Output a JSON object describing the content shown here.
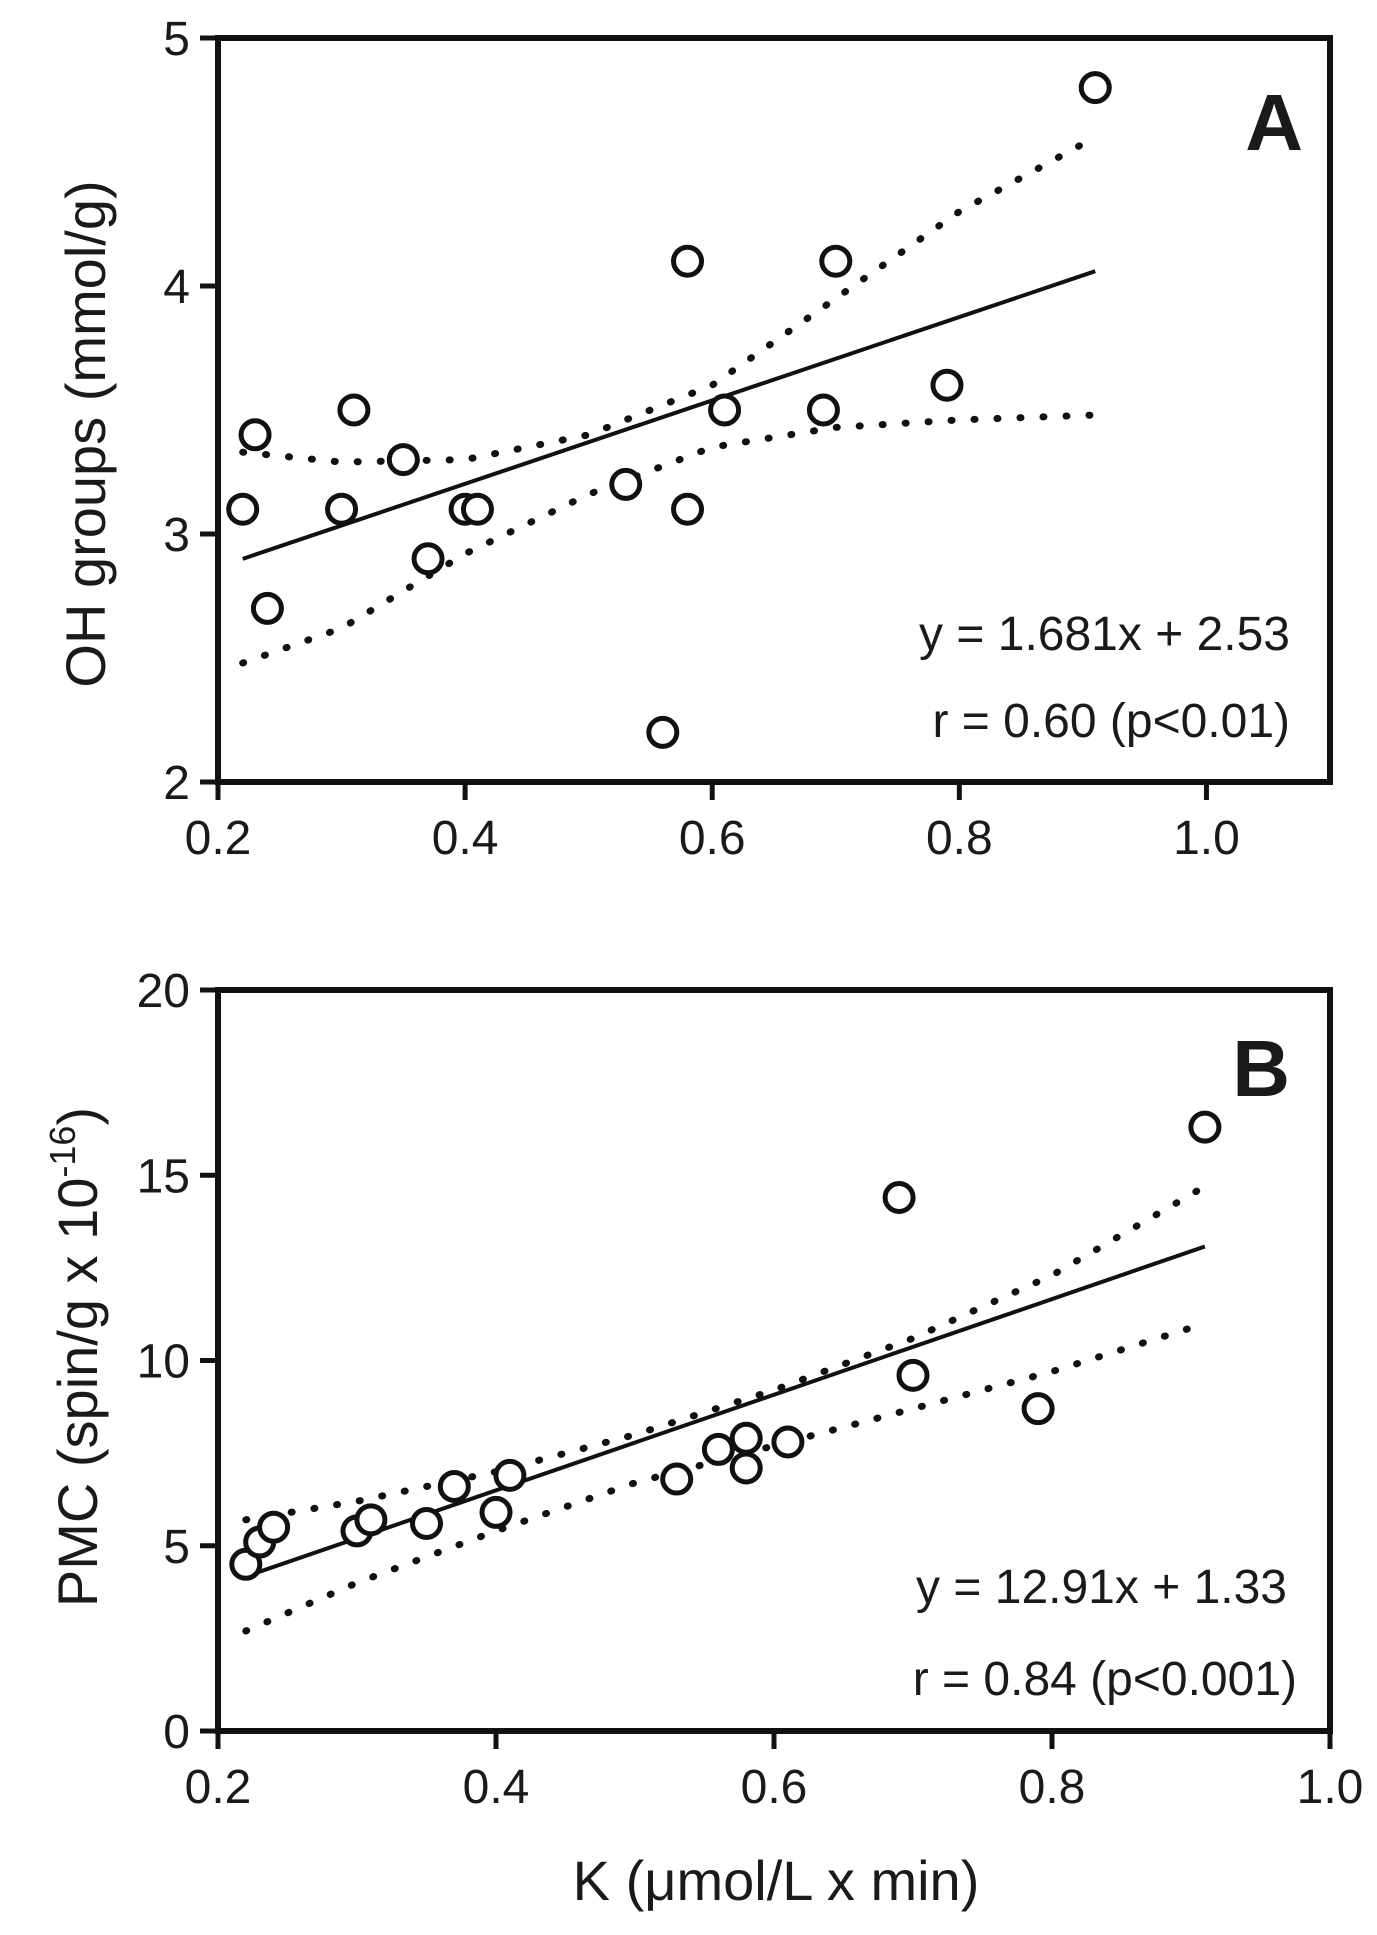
{
  "chart_data": [
    {
      "panel": "A",
      "type": "scatter",
      "ylabel": "OH groups (mmol/g)",
      "xlabel": "",
      "xlim": [
        0.2,
        1.1
      ],
      "ylim": [
        2,
        5
      ],
      "xticks": [
        0.2,
        0.4,
        0.6,
        0.8,
        1.0
      ],
      "xtick_labels": [
        "0.2",
        "0.4",
        "0.6",
        "0.8",
        "1.0"
      ],
      "yticks": [
        2,
        3,
        4,
        5
      ],
      "ytick_labels": [
        "2",
        "3",
        "4",
        "5"
      ],
      "points": [
        {
          "x": 0.22,
          "y": 3.1
        },
        {
          "x": 0.23,
          "y": 3.4
        },
        {
          "x": 0.24,
          "y": 2.7
        },
        {
          "x": 0.3,
          "y": 3.1
        },
        {
          "x": 0.31,
          "y": 3.5
        },
        {
          "x": 0.35,
          "y": 3.3
        },
        {
          "x": 0.37,
          "y": 2.9
        },
        {
          "x": 0.4,
          "y": 3.1
        },
        {
          "x": 0.41,
          "y": 3.1
        },
        {
          "x": 0.53,
          "y": 3.2
        },
        {
          "x": 0.56,
          "y": 2.2
        },
        {
          "x": 0.58,
          "y": 3.1
        },
        {
          "x": 0.58,
          "y": 4.1
        },
        {
          "x": 0.61,
          "y": 3.5
        },
        {
          "x": 0.69,
          "y": 3.5
        },
        {
          "x": 0.7,
          "y": 4.1
        },
        {
          "x": 0.79,
          "y": 3.6
        },
        {
          "x": 0.91,
          "y": 4.8
        }
      ],
      "fit": {
        "slope": 1.681,
        "intercept": 2.53,
        "x_range": [
          0.22,
          0.91
        ]
      },
      "ci_upper": [
        [
          0.22,
          3.33
        ],
        [
          0.3,
          3.29
        ],
        [
          0.4,
          3.3
        ],
        [
          0.5,
          3.4
        ],
        [
          0.6,
          3.6
        ],
        [
          0.7,
          3.95
        ],
        [
          0.8,
          4.3
        ],
        [
          0.91,
          4.6
        ]
      ],
      "ci_lower": [
        [
          0.22,
          2.48
        ],
        [
          0.3,
          2.62
        ],
        [
          0.4,
          2.92
        ],
        [
          0.5,
          3.16
        ],
        [
          0.6,
          3.35
        ],
        [
          0.7,
          3.43
        ],
        [
          0.8,
          3.46
        ],
        [
          0.91,
          3.48
        ]
      ],
      "letter": "A",
      "equation": "y = 1.681x + 2.53",
      "correlation": "r = 0.60 (p<0.01)"
    },
    {
      "panel": "B",
      "type": "scatter",
      "ylabel_main": "PMC (spin/g x 10",
      "ylabel_sup": "-16",
      "ylabel_end": ")",
      "xlabel": "K (μmol/L x min)",
      "xlim": [
        0.2,
        1.0
      ],
      "ylim": [
        0,
        20
      ],
      "xticks": [
        0.2,
        0.4,
        0.6,
        0.8,
        1.0
      ],
      "xtick_labels": [
        "0.2",
        "0.4",
        "0.6",
        "0.8",
        "1.0"
      ],
      "yticks": [
        0,
        5,
        10,
        15,
        20
      ],
      "ytick_labels": [
        "0",
        "5",
        "10",
        "15",
        "20"
      ],
      "points": [
        {
          "x": 0.22,
          "y": 4.5
        },
        {
          "x": 0.23,
          "y": 5.1
        },
        {
          "x": 0.24,
          "y": 5.5
        },
        {
          "x": 0.3,
          "y": 5.4
        },
        {
          "x": 0.31,
          "y": 5.7
        },
        {
          "x": 0.35,
          "y": 5.6
        },
        {
          "x": 0.37,
          "y": 6.6
        },
        {
          "x": 0.4,
          "y": 5.9
        },
        {
          "x": 0.41,
          "y": 6.9
        },
        {
          "x": 0.53,
          "y": 6.8
        },
        {
          "x": 0.56,
          "y": 7.6
        },
        {
          "x": 0.58,
          "y": 7.1
        },
        {
          "x": 0.58,
          "y": 7.9
        },
        {
          "x": 0.61,
          "y": 7.8
        },
        {
          "x": 0.69,
          "y": 14.4
        },
        {
          "x": 0.7,
          "y": 9.6
        },
        {
          "x": 0.79,
          "y": 8.7
        },
        {
          "x": 0.91,
          "y": 16.3
        }
      ],
      "fit": {
        "slope": 12.91,
        "intercept": 1.33,
        "x_range": [
          0.22,
          0.91
        ]
      },
      "ci_upper": [
        [
          0.22,
          5.7
        ],
        [
          0.3,
          6.2
        ],
        [
          0.4,
          7.0
        ],
        [
          0.5,
          8.0
        ],
        [
          0.6,
          9.2
        ],
        [
          0.7,
          10.6
        ],
        [
          0.8,
          12.3
        ],
        [
          0.91,
          14.7
        ]
      ],
      "ci_lower": [
        [
          0.22,
          2.7
        ],
        [
          0.3,
          4.0
        ],
        [
          0.4,
          5.4
        ],
        [
          0.5,
          6.7
        ],
        [
          0.6,
          7.7
        ],
        [
          0.7,
          8.7
        ],
        [
          0.8,
          9.7
        ],
        [
          0.91,
          11.0
        ]
      ],
      "letter": "B",
      "equation": "y = 12.91x + 1.33",
      "correlation": "r = 0.84 (p<0.001)"
    }
  ]
}
